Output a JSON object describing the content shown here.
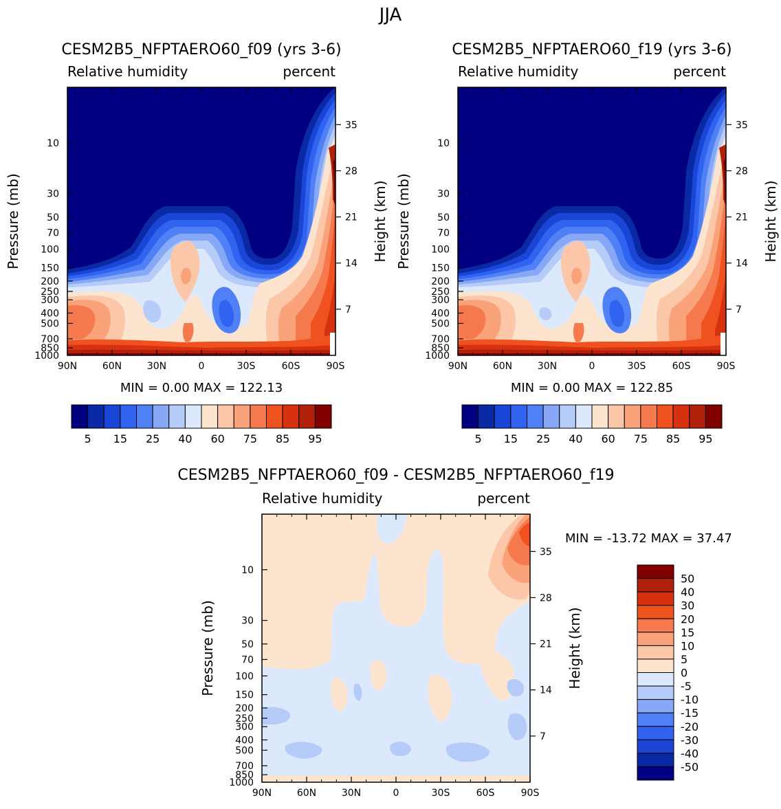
{
  "page_title": "JJA",
  "chart_data": [
    {
      "type": "heatmap",
      "title": "CESM2B5_NFPTAERO60_f09 (yrs 3-6)",
      "subtitle_left": "Relative humidity",
      "subtitle_right": "percent",
      "ylabel": "Pressure (mb)",
      "ylabel_right": "Height (km)",
      "x_ticks": [
        "90N",
        "60N",
        "30N",
        "0",
        "30S",
        "60S",
        "90S"
      ],
      "y_ticks": [
        "10",
        "30",
        "50",
        "70",
        "100",
        "150",
        "200",
        "250",
        "300",
        "400",
        "500",
        "700",
        "850",
        "1000"
      ],
      "y_ticks_right": [
        "35",
        "28",
        "21",
        "14",
        "7"
      ],
      "min_max": "MIN =    0.00   MAX = 122.13",
      "min": 0.0,
      "max": 122.13,
      "colorbar_labels": [
        "5",
        "15",
        "25",
        "40",
        "60",
        "75",
        "85",
        "95"
      ]
    },
    {
      "type": "heatmap",
      "title": "CESM2B5_NFPTAERO60_f19 (yrs 3-6)",
      "subtitle_left": "Relative humidity",
      "subtitle_right": "percent",
      "ylabel": "Pressure (mb)",
      "ylabel_right": "Height (km)",
      "x_ticks": [
        "90N",
        "60N",
        "30N",
        "0",
        "30S",
        "60S",
        "90S"
      ],
      "y_ticks": [
        "10",
        "30",
        "50",
        "70",
        "100",
        "150",
        "200",
        "250",
        "300",
        "400",
        "500",
        "700",
        "850",
        "1000"
      ],
      "y_ticks_right": [
        "35",
        "28",
        "21",
        "14",
        "7"
      ],
      "min_max": "MIN =    0.00   MAX = 122.85",
      "min": 0.0,
      "max": 122.85,
      "colorbar_labels": [
        "5",
        "15",
        "25",
        "40",
        "60",
        "75",
        "85",
        "95"
      ]
    },
    {
      "type": "heatmap",
      "title": "CESM2B5_NFPTAERO60_f09 - CESM2B5_NFPTAERO60_f19",
      "subtitle_left": "Relative humidity",
      "subtitle_right": "percent",
      "ylabel": "Pressure (mb)",
      "ylabel_right": "Height (km)",
      "x_ticks": [
        "90N",
        "60N",
        "30N",
        "0",
        "30S",
        "60S",
        "90S"
      ],
      "y_ticks": [
        "10",
        "30",
        "50",
        "70",
        "100",
        "150",
        "200",
        "250",
        "300",
        "400",
        "500",
        "700",
        "850",
        "1000"
      ],
      "y_ticks_right": [
        "35",
        "28",
        "21",
        "14",
        "7"
      ],
      "min_max": "MIN = -13.72   MAX =  37.47",
      "min": -13.72,
      "max": 37.47,
      "colorbar_labels": [
        "50",
        "40",
        "30",
        "20",
        "15",
        "10",
        "5",
        "0",
        "-5",
        "-10",
        "-15",
        "-20",
        "-30",
        "-40",
        "-50"
      ]
    }
  ],
  "colors": {
    "rh_levels": [
      "#000080",
      "#0a2aa5",
      "#1a46d8",
      "#2f63f0",
      "#4f80f5",
      "#86a8f6",
      "#b6ccf8",
      "#dce8fb",
      "#fde4cf",
      "#fcc7a8",
      "#faa37b",
      "#f6794d",
      "#f0521f",
      "#d7320f",
      "#b1200a",
      "#800000"
    ],
    "diff_levels": [
      "#000080",
      "#0a2aa5",
      "#1a46d8",
      "#2f63f0",
      "#4f80f5",
      "#86a8f6",
      "#b6ccf8",
      "#dce8fb",
      "#fde4cf",
      "#fcc7a8",
      "#faa37b",
      "#f6794d",
      "#f0521f",
      "#d7320f",
      "#b1200a",
      "#800000"
    ]
  }
}
